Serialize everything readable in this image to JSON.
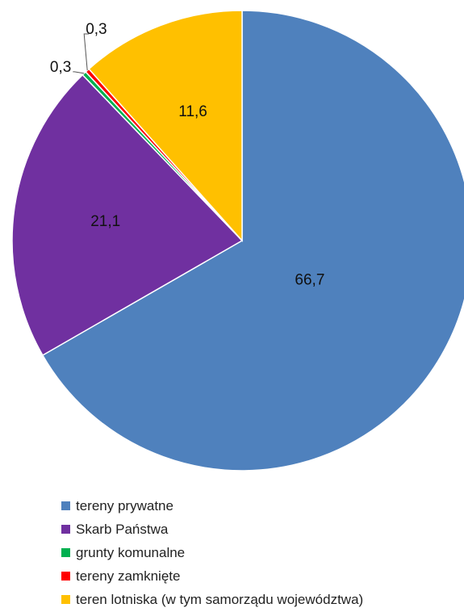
{
  "chart_data": {
    "type": "pie",
    "title": "",
    "start": "12 o'clock, clockwise",
    "legend_position": "bottom",
    "slices": [
      {
        "name": "tereny prywatne",
        "value": 66.7,
        "label": "66,7",
        "color": "#4f81bd"
      },
      {
        "name": "Skarb Państwa",
        "value": 21.1,
        "label": "21,1",
        "color": "#7030a0"
      },
      {
        "name": "grunty komunalne",
        "value": 0.3,
        "label": "0,3",
        "color": "#00b050"
      },
      {
        "name": "tereny zamknięte",
        "value": 0.3,
        "label": "0,3",
        "color": "#ff0000"
      },
      {
        "name": "teren lotniska (w tym samorządu województwa)",
        "value": 11.6,
        "label": "11,6",
        "color": "#ffc000"
      }
    ]
  }
}
